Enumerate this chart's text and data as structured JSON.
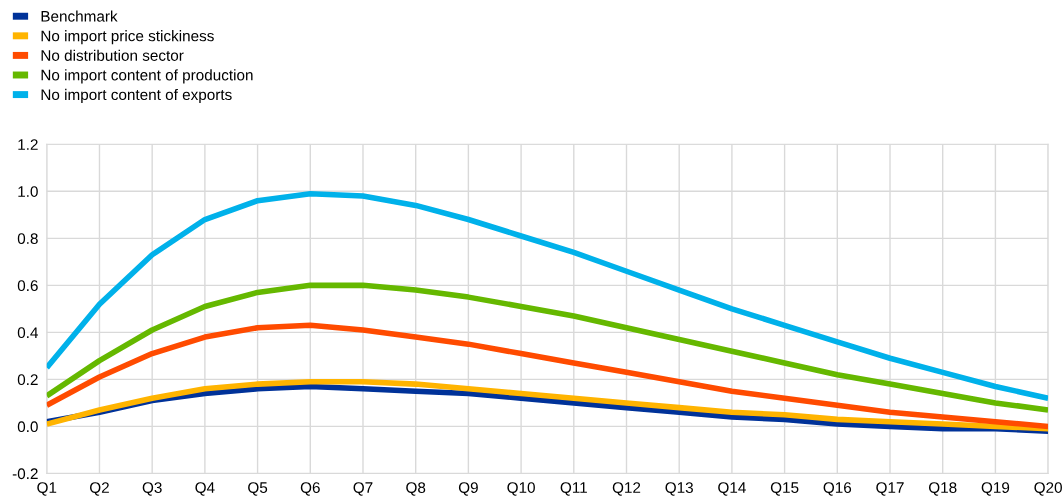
{
  "chart_data": {
    "type": "line",
    "categories": [
      "Q1",
      "Q2",
      "Q3",
      "Q4",
      "Q5",
      "Q6",
      "Q7",
      "Q8",
      "Q9",
      "Q10",
      "Q11",
      "Q12",
      "Q13",
      "Q14",
      "Q15",
      "Q16",
      "Q17",
      "Q18",
      "Q19",
      "Q20"
    ],
    "series": [
      {
        "name": "Benchmark",
        "color": "#003299",
        "values": [
          0.02,
          0.06,
          0.11,
          0.14,
          0.16,
          0.17,
          0.16,
          0.15,
          0.14,
          0.12,
          0.1,
          0.08,
          0.06,
          0.04,
          0.03,
          0.01,
          0.0,
          -0.01,
          -0.01,
          -0.02
        ]
      },
      {
        "name": "No import price stickiness",
        "color": "#ffb400",
        "values": [
          0.01,
          0.07,
          0.12,
          0.16,
          0.18,
          0.19,
          0.19,
          0.18,
          0.16,
          0.14,
          0.12,
          0.1,
          0.08,
          0.06,
          0.05,
          0.03,
          0.02,
          0.01,
          0.0,
          -0.01
        ]
      },
      {
        "name": "No distribution sector",
        "color": "#ff4b00",
        "values": [
          0.09,
          0.21,
          0.31,
          0.38,
          0.42,
          0.43,
          0.41,
          0.38,
          0.35,
          0.31,
          0.27,
          0.23,
          0.19,
          0.15,
          0.12,
          0.09,
          0.06,
          0.04,
          0.02,
          0.0
        ]
      },
      {
        "name": "No import content of production",
        "color": "#65b800",
        "values": [
          0.13,
          0.28,
          0.41,
          0.51,
          0.57,
          0.6,
          0.6,
          0.58,
          0.55,
          0.51,
          0.47,
          0.42,
          0.37,
          0.32,
          0.27,
          0.22,
          0.18,
          0.14,
          0.1,
          0.07
        ]
      },
      {
        "name": "No import content of exports",
        "color": "#00b1ea",
        "values": [
          0.25,
          0.52,
          0.73,
          0.88,
          0.96,
          0.99,
          0.98,
          0.94,
          0.88,
          0.81,
          0.74,
          0.66,
          0.58,
          0.5,
          0.43,
          0.36,
          0.29,
          0.23,
          0.17,
          0.12
        ]
      }
    ],
    "ylim": [
      -0.2,
      1.2
    ],
    "yticks": [
      {
        "value": -0.2,
        "label": "-0.2"
      },
      {
        "value": 0,
        "label": "0.0"
      },
      0.2,
      0.4,
      0.6,
      0.8,
      {
        "value": 1,
        "label": "1.0"
      },
      1.2
    ],
    "grid": true,
    "legend": "top left",
    "marker": "none",
    "line_style": "solid"
  }
}
